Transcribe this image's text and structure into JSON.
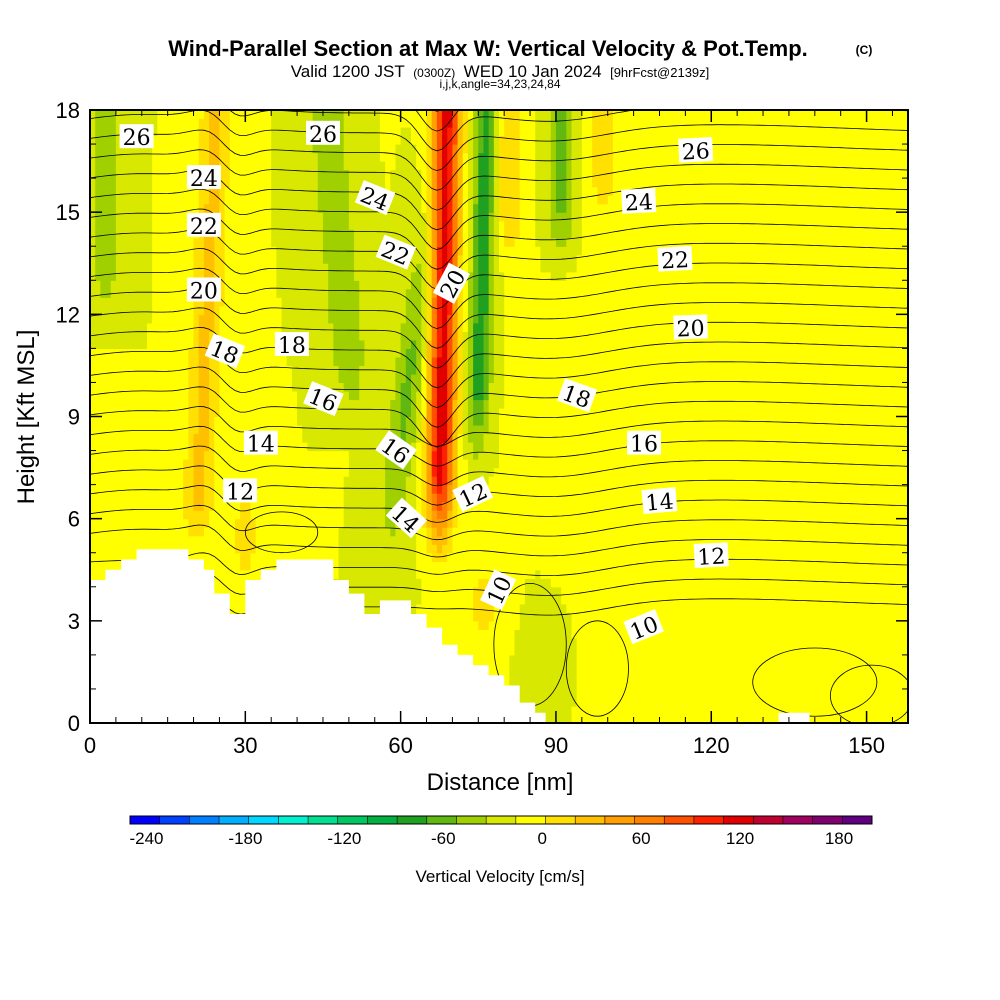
{
  "title": "Wind-Parallel Section at Max W: Vertical Velocity & Pot.Temp.",
  "copyright": "(C)",
  "subtitle": {
    "valid_prefix": "Valid 1200 JST",
    "utc": "(0300Z)",
    "date": "WED 10 Jan 2024",
    "forecast": "[9hrFcst@2139z]",
    "indices": "i,j,k,angle=34,23,24,84"
  },
  "chart_data": {
    "type": "heatmap",
    "xlabel": "Distance [nm]",
    "ylabel": "Height [Kft MSL]",
    "xlim": [
      0,
      158
    ],
    "ylim": [
      0,
      18
    ],
    "x_ticks": [
      "0",
      "30",
      "60",
      "90",
      "120",
      "150"
    ],
    "y_ticks": [
      "0",
      "3",
      "6",
      "9",
      "12",
      "15",
      "18"
    ],
    "x_tick_values": [
      0,
      30,
      60,
      90,
      120,
      150
    ],
    "y_tick_values": [
      0,
      3,
      6,
      9,
      12,
      15,
      18
    ],
    "colorbar": {
      "label": "Vertical Velocity [cm/s]",
      "range": [
        -250,
        200
      ],
      "step": 20,
      "tick_labels": [
        "-240",
        "-180",
        "-120",
        "-60",
        "0",
        "60",
        "120",
        "180"
      ],
      "tick_values": [
        -240,
        -180,
        -120,
        -60,
        0,
        60,
        120,
        180
      ],
      "colors": [
        "#0000ff",
        "#0040ff",
        "#0080ff",
        "#00b0ff",
        "#00d8ff",
        "#00f0d0",
        "#00e090",
        "#00c860",
        "#00b040",
        "#20a020",
        "#60b810",
        "#a0d000",
        "#d8e800",
        "#ffff00",
        "#ffe000",
        "#ffc000",
        "#ffa000",
        "#ff8000",
        "#ff5000",
        "#ff2000",
        "#e00000",
        "#c00030",
        "#a00060",
        "#800070",
        "#600080"
      ]
    },
    "velocity_features": [
      {
        "x": 68,
        "y_range": [
          4.5,
          18
        ],
        "w": 150,
        "desc": "updraft core"
      },
      {
        "x": 75,
        "y_range": [
          8,
          18
        ],
        "w": -70
      },
      {
        "x": 60,
        "y_range": [
          6,
          12
        ],
        "w": -50
      },
      {
        "x": 48,
        "y_range": [
          9,
          18
        ],
        "w": -40
      },
      {
        "x": 23,
        "y_range": [
          5,
          18
        ],
        "w": 45
      },
      {
        "x": 3,
        "y_range": [
          12,
          18
        ],
        "w": -40
      },
      {
        "x": 80,
        "y_range": [
          14,
          18
        ],
        "w": 40
      },
      {
        "x": 90,
        "y_range": [
          14,
          18
        ],
        "w": -40
      },
      {
        "x": 130,
        "y_range": [
          0,
          18
        ],
        "w": 20
      }
    ],
    "theta_series": [
      {
        "name": "10",
        "label": "10"
      },
      {
        "name": "12",
        "label": "12"
      },
      {
        "name": "14",
        "label": "14"
      },
      {
        "name": "16",
        "label": "16"
      },
      {
        "name": "18",
        "label": "18"
      },
      {
        "name": "20",
        "label": "20"
      },
      {
        "name": "22",
        "label": "22"
      },
      {
        "name": "24",
        "label": "24"
      },
      {
        "name": "26",
        "label": "26"
      }
    ],
    "contour_labels": [
      {
        "text": "26",
        "x": 9,
        "y": 17.2,
        "angle": 0
      },
      {
        "text": "26",
        "x": 45,
        "y": 17.3,
        "angle": 0
      },
      {
        "text": "26",
        "x": 117,
        "y": 16.8,
        "angle": -3
      },
      {
        "text": "24",
        "x": 22,
        "y": 16.0,
        "angle": 0
      },
      {
        "text": "24",
        "x": 55,
        "y": 15.4,
        "angle": 22
      },
      {
        "text": "24",
        "x": 106,
        "y": 15.3,
        "angle": -3
      },
      {
        "text": "22",
        "x": 22,
        "y": 14.6,
        "angle": 0
      },
      {
        "text": "22",
        "x": 59,
        "y": 13.8,
        "angle": 22
      },
      {
        "text": "22",
        "x": 113,
        "y": 13.6,
        "angle": -3
      },
      {
        "text": "20",
        "x": 22,
        "y": 12.7,
        "angle": 0
      },
      {
        "text": "20",
        "x": 70,
        "y": 12.9,
        "angle": -62
      },
      {
        "text": "20",
        "x": 116,
        "y": 11.6,
        "angle": -2
      },
      {
        "text": "18",
        "x": 26,
        "y": 10.9,
        "angle": 22
      },
      {
        "text": "18",
        "x": 39,
        "y": 11.1,
        "angle": 0
      },
      {
        "text": "18",
        "x": 94,
        "y": 9.6,
        "angle": 20
      },
      {
        "text": "16",
        "x": 45,
        "y": 9.5,
        "angle": 22
      },
      {
        "text": "16",
        "x": 59,
        "y": 8.0,
        "angle": 35
      },
      {
        "text": "16",
        "x": 107,
        "y": 8.2,
        "angle": 0
      },
      {
        "text": "14",
        "x": 33,
        "y": 8.2,
        "angle": 0
      },
      {
        "text": "14",
        "x": 61,
        "y": 6.0,
        "angle": 42
      },
      {
        "text": "14",
        "x": 110,
        "y": 6.5,
        "angle": -5
      },
      {
        "text": "12",
        "x": 29,
        "y": 6.8,
        "angle": 0
      },
      {
        "text": "12",
        "x": 74,
        "y": 6.7,
        "angle": -25
      },
      {
        "text": "12",
        "x": 120,
        "y": 4.9,
        "angle": -3
      },
      {
        "text": "10",
        "x": 79,
        "y": 3.9,
        "angle": -65
      },
      {
        "text": "10",
        "x": 107,
        "y": 2.8,
        "angle": -22
      }
    ],
    "terrain_label": "terrain (no data)",
    "grid": false
  },
  "colors": {
    "background": "#ffffff",
    "plot_border": "#000000",
    "terrain": "#ffffff",
    "contour": "#000000"
  }
}
